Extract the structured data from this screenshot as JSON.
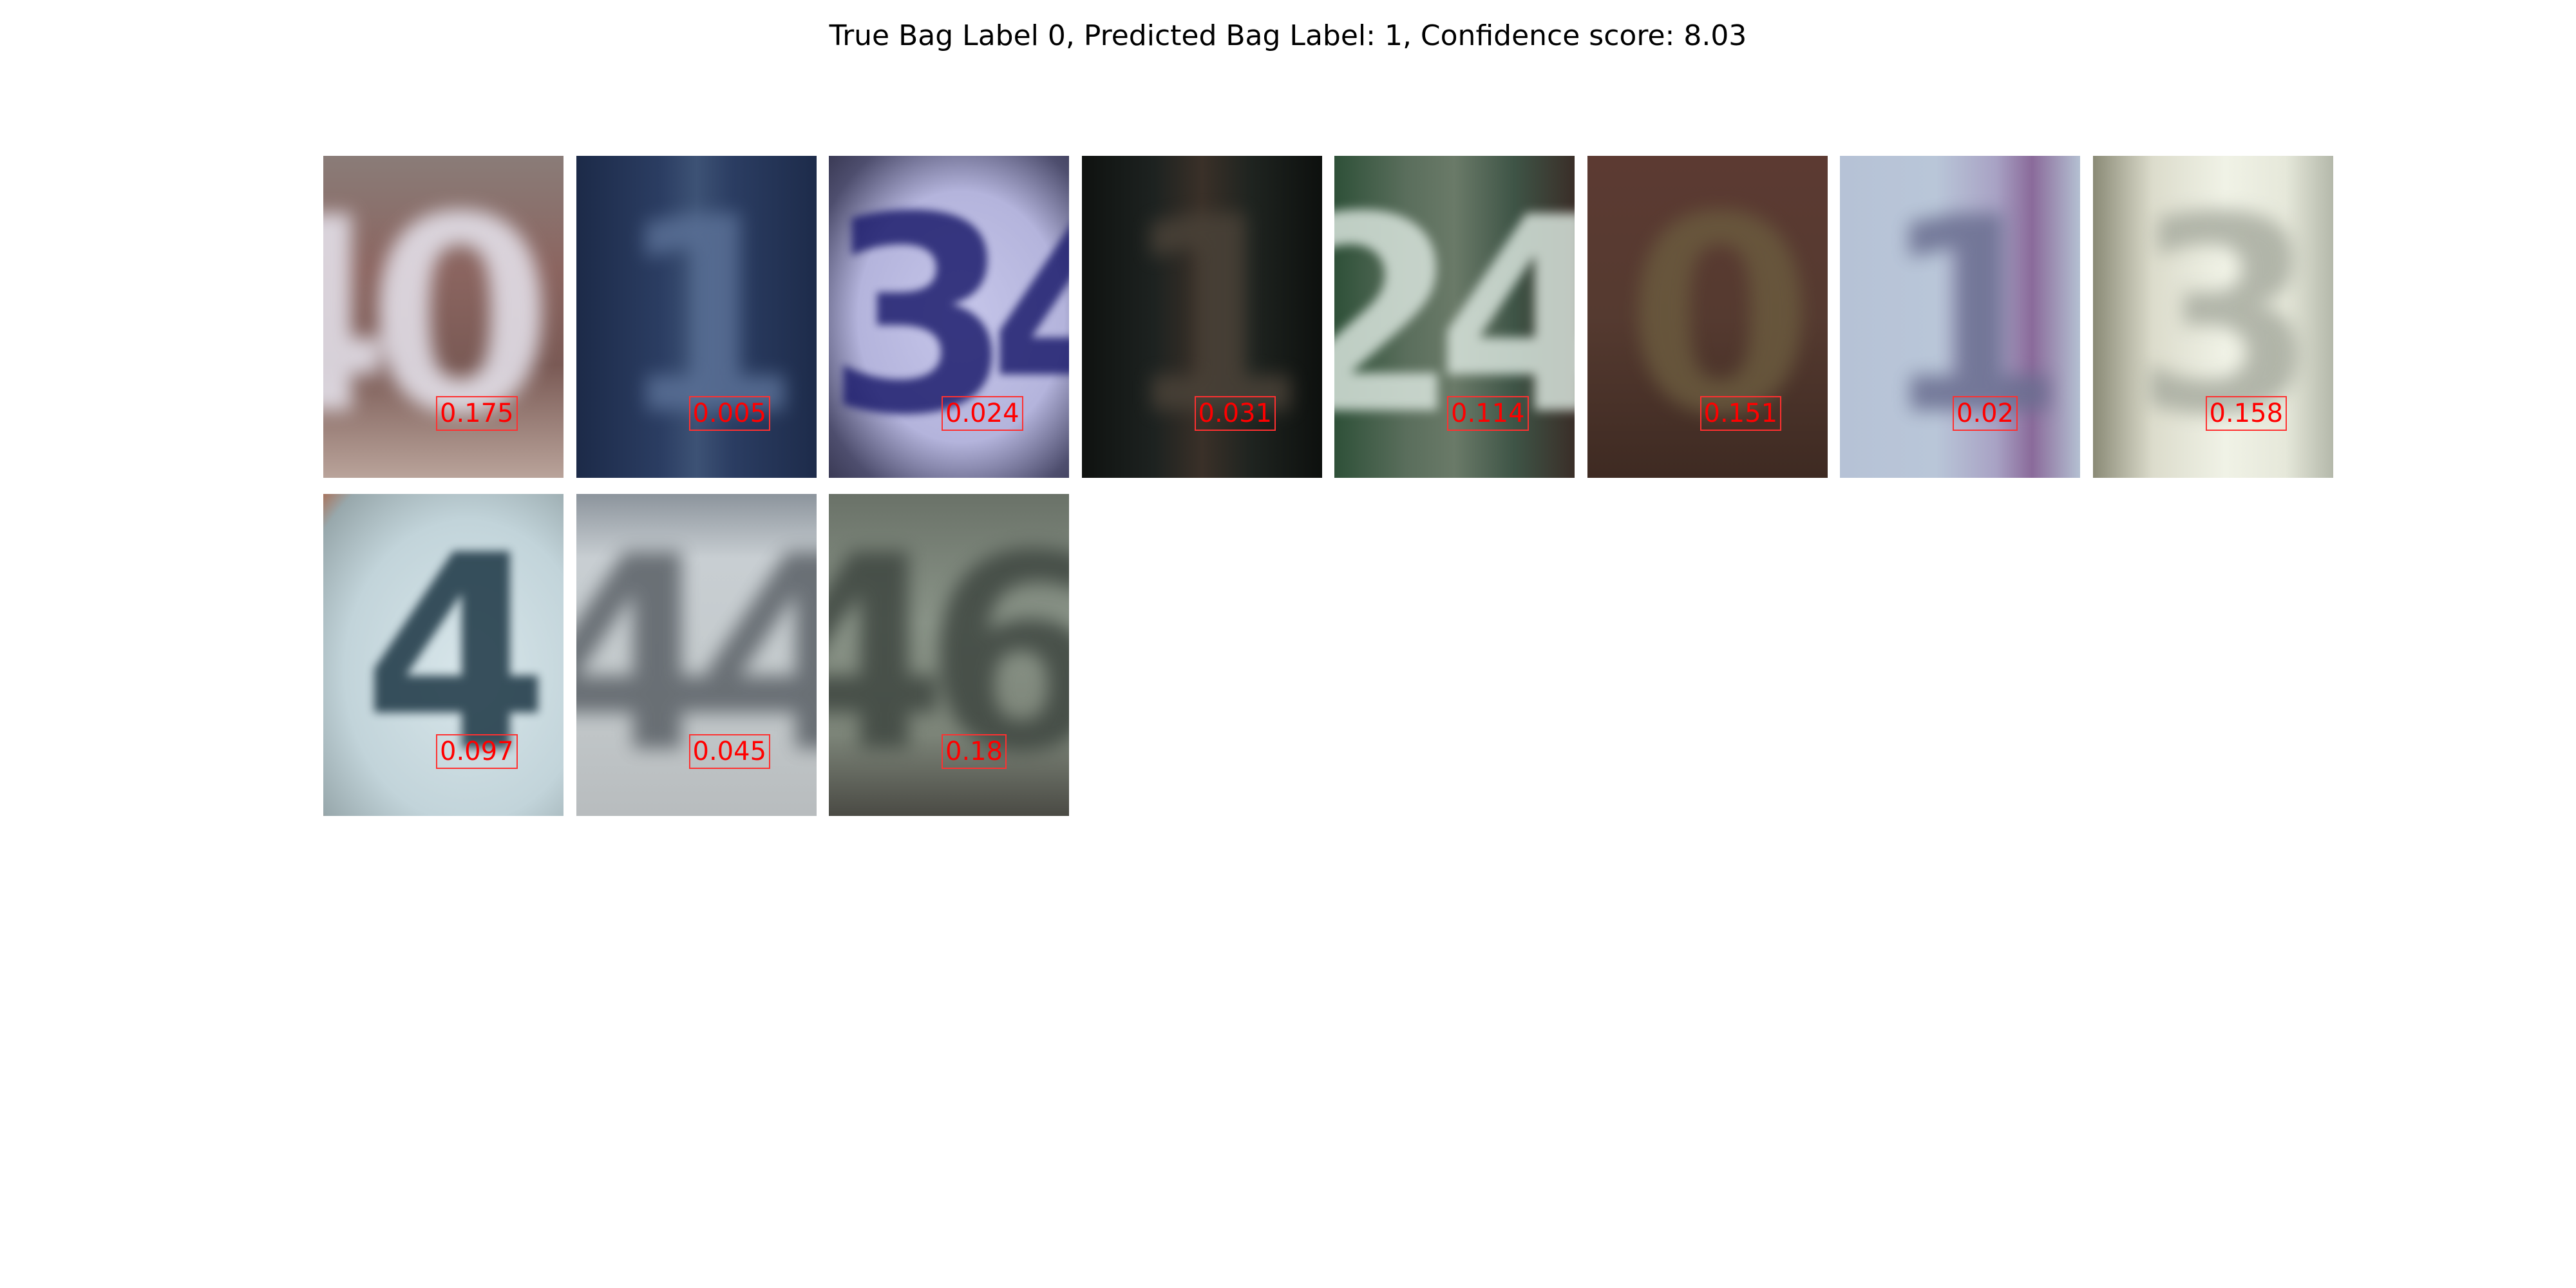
{
  "title": "True Bag Label 0, Predicted Bag Label: 1, Confidence score: 8.03",
  "tiles": [
    {
      "digit": "40",
      "score": "0.175"
    },
    {
      "digit": "1",
      "score": "0.005"
    },
    {
      "digit": "34",
      "score": "0.024"
    },
    {
      "digit": "1",
      "score": "0.031"
    },
    {
      "digit": "24",
      "score": "0.114"
    },
    {
      "digit": "0",
      "score": "0.151"
    },
    {
      "digit": "1",
      "score": "0.02"
    },
    {
      "digit": "3",
      "score": "0.158"
    },
    {
      "digit": "4",
      "score": "0.097"
    },
    {
      "digit": "44",
      "score": "0.045"
    },
    {
      "digit": "46",
      "score": "0.18"
    }
  ]
}
